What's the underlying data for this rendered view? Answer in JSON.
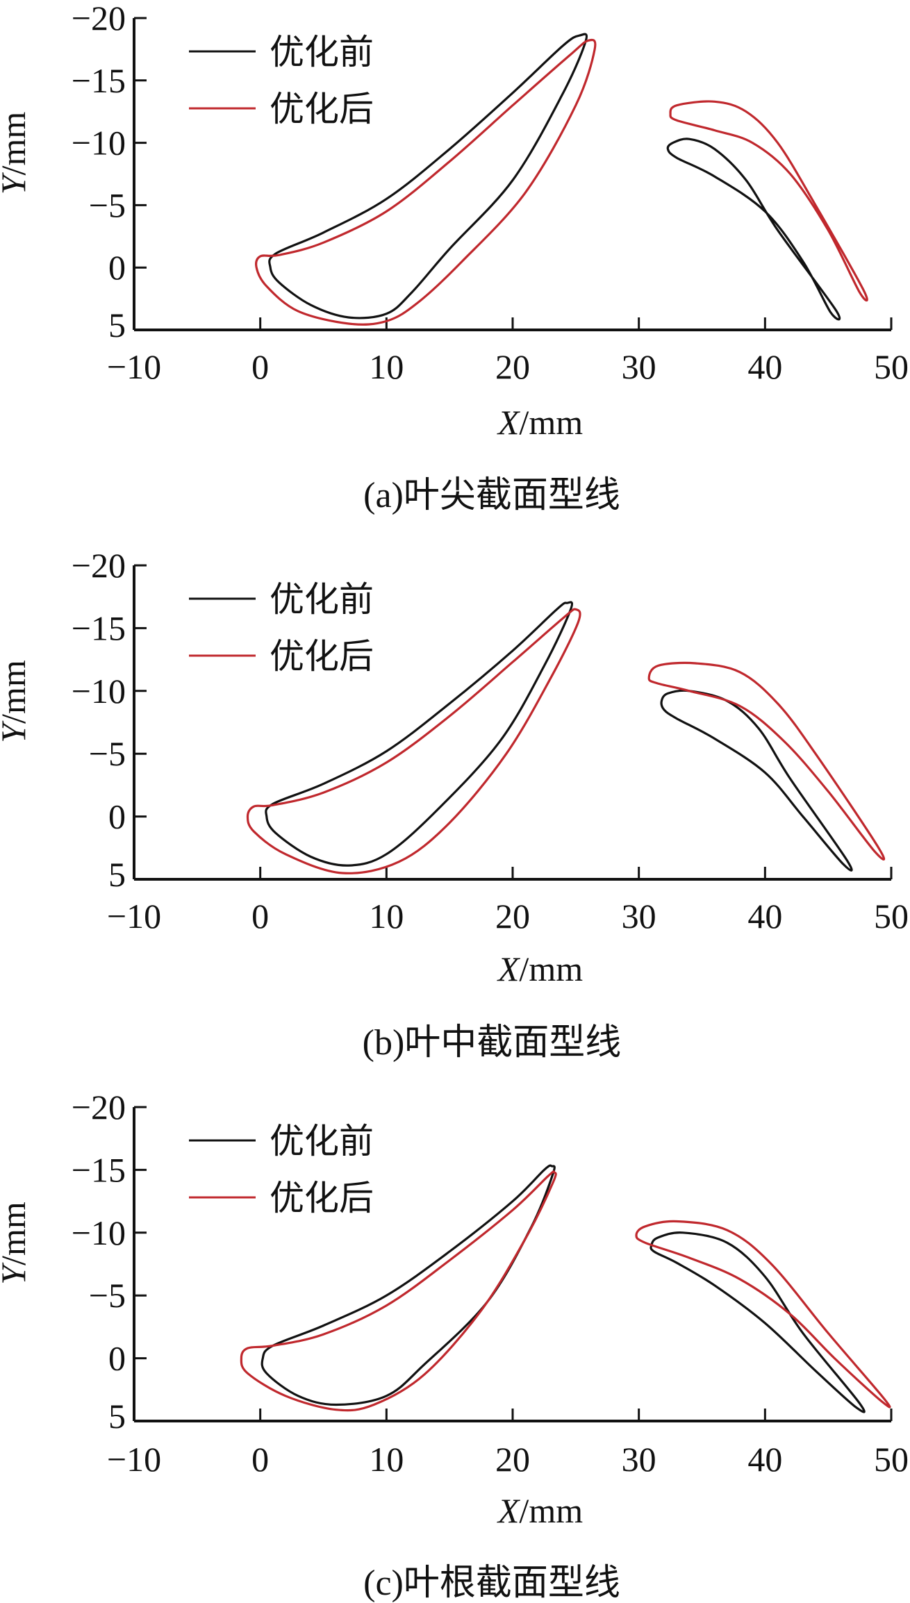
{
  "colors": {
    "before": "#111111",
    "after": "#c0282d",
    "axis": "#111111"
  },
  "chart_data": [
    {
      "type": "line",
      "caption": "(a)叶尖截面型线",
      "xlabel_italic": "X",
      "xlabel_unit": "/mm",
      "ylabel_italic": "Y",
      "ylabel_unit": "/mm",
      "xlim": [
        -10,
        50
      ],
      "ylim": [
        -20,
        5
      ],
      "y_inverted": true,
      "xticks": [
        -10,
        0,
        10,
        20,
        30,
        40,
        50
      ],
      "yticks": [
        -20,
        -15,
        -10,
        -5,
        0,
        5
      ],
      "legend": [
        "优化前",
        "优化后"
      ],
      "legend_position": "top-left",
      "series": [
        {
          "name": "优化前",
          "color": "#111111",
          "shapes": [
            [
              [
                0.8,
                0
              ],
              [
                1.2,
                -1.1
              ],
              [
                5,
                -2.8
              ],
              [
                10,
                -5.5
              ],
              [
                15,
                -9.5
              ],
              [
                20,
                -14
              ],
              [
                24,
                -17.8
              ],
              [
                25.3,
                -18.6
              ],
              [
                25.8,
                -18.2
              ],
              [
                24,
                -14
              ],
              [
                20,
                -7
              ],
              [
                15,
                -1.5
              ],
              [
                12,
                2
              ],
              [
                10,
                3.7
              ],
              [
                7,
                4
              ],
              [
                4,
                3
              ],
              [
                1.5,
                1.2
              ]
            ],
            [
              [
                32.3,
                -9.5
              ],
              [
                32.7,
                -10
              ],
              [
                34,
                -10.3
              ],
              [
                36,
                -9.5
              ],
              [
                38.5,
                -7
              ],
              [
                41,
                -3
              ],
              [
                45.6,
                3.4
              ],
              [
                45.2,
                3.6
              ],
              [
                43,
                -0.5
              ],
              [
                40,
                -4.5
              ],
              [
                36,
                -7.3
              ],
              [
                33,
                -8.8
              ]
            ]
          ]
        },
        {
          "name": "优化后",
          "color": "#c0282d",
          "shapes": [
            [
              [
                -0.3,
                0
              ],
              [
                0,
                -0.9
              ],
              [
                1.5,
                -1.0
              ],
              [
                5,
                -2
              ],
              [
                10,
                -4.5
              ],
              [
                15,
                -8.5
              ],
              [
                20,
                -13
              ],
              [
                24.5,
                -17
              ],
              [
                26,
                -18.2
              ],
              [
                26.5,
                -17.5
              ],
              [
                25,
                -13
              ],
              [
                21,
                -6
              ],
              [
                16,
                -0.5
              ],
              [
                12.5,
                2.8
              ],
              [
                10,
                4.3
              ],
              [
                7,
                4.5
              ],
              [
                3,
                3.5
              ],
              [
                0.5,
                1.5
              ]
            ],
            [
              [
                32.5,
                -12.3
              ],
              [
                33,
                -13
              ],
              [
                36,
                -13.3
              ],
              [
                38.5,
                -12.5
              ],
              [
                41,
                -10
              ],
              [
                44,
                -5
              ],
              [
                47.8,
                1.8
              ],
              [
                47.5,
                2
              ],
              [
                45,
                -3
              ],
              [
                42,
                -7.5
              ],
              [
                39,
                -10
              ],
              [
                36,
                -11
              ],
              [
                33,
                -11.8
              ]
            ]
          ]
        }
      ]
    },
    {
      "type": "line",
      "caption": "(b)叶中截面型线",
      "xlabel_italic": "X",
      "xlabel_unit": "/mm",
      "ylabel_italic": "Y",
      "ylabel_unit": "/mm",
      "xlim": [
        -10,
        50
      ],
      "ylim": [
        -20,
        5
      ],
      "y_inverted": true,
      "xticks": [
        -10,
        0,
        10,
        20,
        30,
        40,
        50
      ],
      "yticks": [
        -20,
        -15,
        -10,
        -5,
        0,
        5
      ],
      "legend": [
        "优化前",
        "优化后"
      ],
      "legend_position": "top-left",
      "series": [
        {
          "name": "优化前",
          "color": "#111111",
          "shapes": [
            [
              [
                0.5,
                0
              ],
              [
                1,
                -1
              ],
              [
                5,
                -2.6
              ],
              [
                10,
                -5.2
              ],
              [
                15,
                -9
              ],
              [
                20,
                -13.2
              ],
              [
                23.5,
                -16.5
              ],
              [
                24.3,
                -17
              ],
              [
                24.6,
                -16.5
              ],
              [
                22.5,
                -12
              ],
              [
                19,
                -6
              ],
              [
                14,
                -0.5
              ],
              [
                10,
                3
              ],
              [
                7,
                3.9
              ],
              [
                4,
                3.2
              ],
              [
                1.2,
                1.3
              ]
            ],
            [
              [
                31.8,
                -9.2
              ],
              [
                32.3,
                -9.8
              ],
              [
                34,
                -10
              ],
              [
                37,
                -9.2
              ],
              [
                39.5,
                -7
              ],
              [
                42,
                -3
              ],
              [
                46.5,
                3.5
              ],
              [
                46.2,
                3.8
              ],
              [
                43,
                0
              ],
              [
                40,
                -3.5
              ],
              [
                36,
                -6.2
              ],
              [
                33,
                -7.8
              ],
              [
                32,
                -8.5
              ]
            ]
          ]
        },
        {
          "name": "优化后",
          "color": "#c0282d",
          "shapes": [
            [
              [
                -1,
                0
              ],
              [
                -0.5,
                -0.8
              ],
              [
                1,
                -0.9
              ],
              [
                5,
                -1.9
              ],
              [
                10,
                -4.3
              ],
              [
                15,
                -8
              ],
              [
                20,
                -12.3
              ],
              [
                24,
                -15.8
              ],
              [
                25,
                -16.5
              ],
              [
                25.2,
                -15.5
              ],
              [
                23,
                -11
              ],
              [
                19.5,
                -5
              ],
              [
                15,
                0.5
              ],
              [
                11,
                3.6
              ],
              [
                6.5,
                4.5
              ],
              [
                2,
                3
              ],
              [
                -0.5,
                1.2
              ]
            ],
            [
              [
                30.8,
                -11
              ],
              [
                31.5,
                -12
              ],
              [
                34.5,
                -12.2
              ],
              [
                38,
                -11.5
              ],
              [
                41,
                -9
              ],
              [
                44,
                -5
              ],
              [
                49,
                2.5
              ],
              [
                48.7,
                2.8
              ],
              [
                45,
                -2
              ],
              [
                41.5,
                -6
              ],
              [
                38,
                -8.8
              ],
              [
                34,
                -10
              ],
              [
                31.5,
                -10.6
              ]
            ]
          ]
        }
      ]
    },
    {
      "type": "line",
      "caption": "(c)叶根截面型线",
      "xlabel_italic": "X",
      "xlabel_unit": "/mm",
      "ylabel_italic": "Y",
      "ylabel_unit": "/mm",
      "xlim": [
        -10,
        50
      ],
      "ylim": [
        -20,
        5
      ],
      "y_inverted": true,
      "xticks": [
        -10,
        0,
        10,
        20,
        30,
        40,
        50
      ],
      "yticks": [
        -20,
        -15,
        -10,
        -5,
        0,
        5
      ],
      "legend": [
        "优化前",
        "优化后"
      ],
      "legend_position": "top-left",
      "series": [
        {
          "name": "优化前",
          "color": "#111111",
          "shapes": [
            [
              [
                0.2,
                0
              ],
              [
                1,
                -1
              ],
              [
                5,
                -2.6
              ],
              [
                10,
                -5
              ],
              [
                15,
                -8.5
              ],
              [
                20,
                -12.5
              ],
              [
                22.5,
                -15
              ],
              [
                23.1,
                -15.3
              ],
              [
                23.2,
                -14.7
              ],
              [
                21.5,
                -10.5
              ],
              [
                18,
                -4.5
              ],
              [
                13,
                0.5
              ],
              [
                10,
                3
              ],
              [
                6,
                3.7
              ],
              [
                3,
                3
              ],
              [
                0.5,
                1.2
              ]
            ],
            [
              [
                31,
                -9
              ],
              [
                31.5,
                -9.6
              ],
              [
                33.5,
                -10
              ],
              [
                37,
                -9.2
              ],
              [
                40,
                -6.5
              ],
              [
                43,
                -2
              ],
              [
                47.5,
                3.6
              ],
              [
                47.2,
                3.9
              ],
              [
                44,
                1
              ],
              [
                40,
                -2.8
              ],
              [
                36,
                -5.8
              ],
              [
                33,
                -7.6
              ],
              [
                31.2,
                -8.5
              ]
            ]
          ]
        },
        {
          "name": "优化后",
          "color": "#c0282d",
          "shapes": [
            [
              [
                -1.5,
                0
              ],
              [
                -1,
                -0.8
              ],
              [
                1,
                -1
              ],
              [
                5,
                -1.9
              ],
              [
                10,
                -4.2
              ],
              [
                15,
                -7.8
              ],
              [
                20,
                -11.8
              ],
              [
                22.8,
                -14.5
              ],
              [
                23.3,
                -14.8
              ],
              [
                23.2,
                -14
              ],
              [
                21,
                -9.5
              ],
              [
                17.5,
                -3.8
              ],
              [
                13,
                1.3
              ],
              [
                9,
                3.7
              ],
              [
                6,
                4.1
              ],
              [
                2,
                3
              ],
              [
                -1,
                1.2
              ]
            ],
            [
              [
                29.8,
                -9.8
              ],
              [
                30.5,
                -10.5
              ],
              [
                33,
                -10.9
              ],
              [
                37,
                -10.2
              ],
              [
                40.5,
                -7.5
              ],
              [
                45,
                -2
              ],
              [
                49.5,
                3.3
              ],
              [
                49.2,
                3.4
              ],
              [
                45.5,
                0
              ],
              [
                42,
                -3.5
              ],
              [
                38,
                -6.3
              ],
              [
                34,
                -8
              ],
              [
                30.5,
                -9.2
              ]
            ]
          ]
        }
      ]
    }
  ]
}
